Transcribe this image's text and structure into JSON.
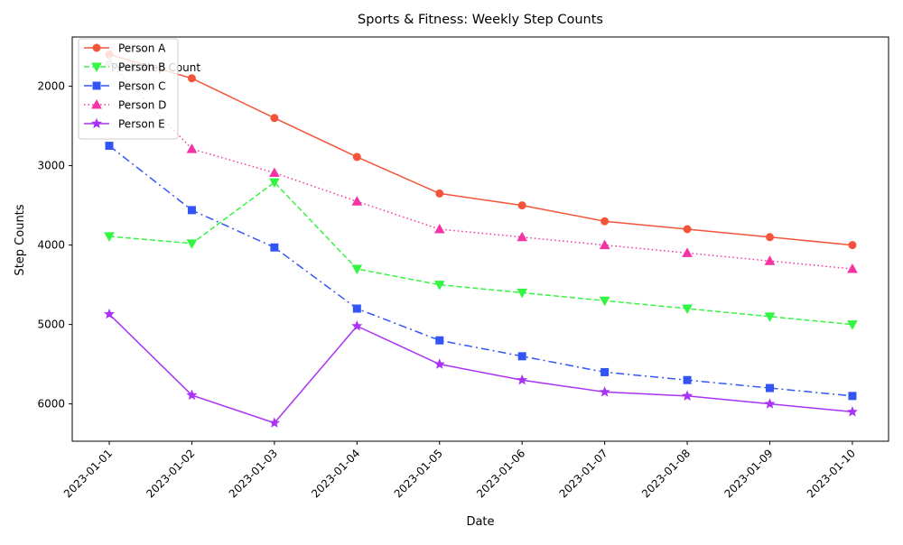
{
  "chart_data": {
    "type": "line",
    "title": "Sports & Fitness: Weekly Step Counts",
    "xlabel": "Date",
    "ylabel": "Step Counts",
    "x": [
      "2023-01-01",
      "2023-01-02",
      "2023-01-03",
      "2023-01-04",
      "2023-01-05",
      "2023-01-06",
      "2023-01-07",
      "2023-01-08",
      "2023-01-09",
      "2023-01-10"
    ],
    "ylim": [
      6470,
      1380
    ],
    "y_inverted": true,
    "yticks": [
      2000,
      3000,
      4000,
      5000,
      6000
    ],
    "grid": false,
    "legend_position": "top-left",
    "series": [
      {
        "name": "Person A",
        "color": "#f4553a",
        "marker": "circle",
        "linestyle": "solid",
        "values": [
          1600,
          1900,
          2400,
          2890,
          3350,
          3500,
          3700,
          3800,
          3900,
          4000
        ]
      },
      {
        "name": "Person B",
        "color": "#33f542",
        "marker": "triangle-down",
        "linestyle": "dashed",
        "values": [
          3890,
          3980,
          3210,
          4300,
          4500,
          4600,
          4700,
          4800,
          4900,
          5000
        ]
      },
      {
        "name": "Person C",
        "color": "#3355f5",
        "marker": "square",
        "linestyle": "dashdot",
        "values": [
          2750,
          3560,
          4030,
          4800,
          5200,
          5400,
          5600,
          5700,
          5800,
          5900
        ]
      },
      {
        "name": "Person D",
        "color": "#f533a4",
        "marker": "triangle-up",
        "linestyle": "dotted",
        "values": [
          1700,
          2790,
          3090,
          3450,
          3800,
          3900,
          4000,
          4100,
          4200,
          4300
        ]
      },
      {
        "name": "Person E",
        "color": "#a833f5",
        "marker": "star",
        "linestyle": "solid",
        "values": [
          4870,
          5890,
          6240,
          5020,
          5500,
          5700,
          5850,
          5900,
          6000,
          6100
        ]
      }
    ],
    "annotations": [
      {
        "text": "Peak Step Count",
        "x": "2023-01-01",
        "y": 1700
      }
    ]
  }
}
